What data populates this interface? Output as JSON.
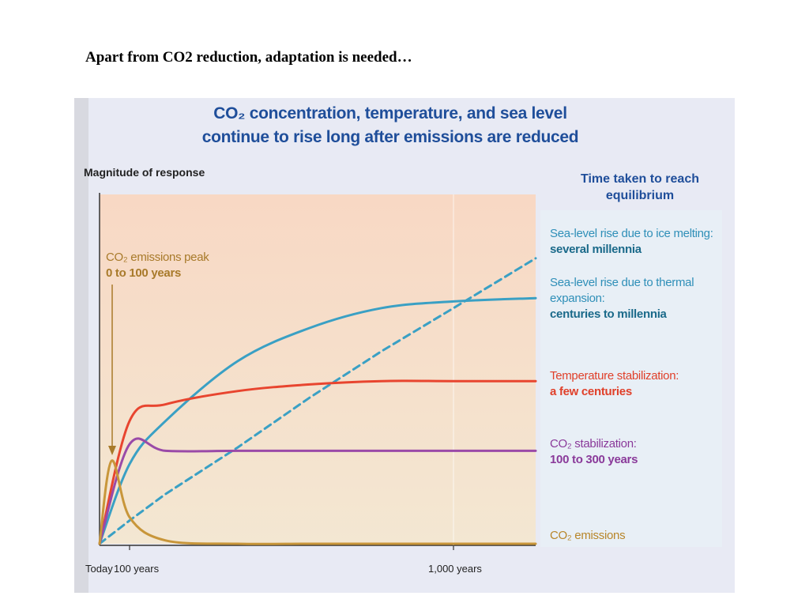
{
  "heading": "Apart from CO2 reduction, adaptation is needed…",
  "figure": {
    "title_line1": "CO₂ concentration, temperature, and sea level",
    "title_line2": "continue to rise long after emissions are reduced",
    "legend_title": "Time taken to reach equilibrium",
    "annotation": {
      "line1": "CO₂ emissions peak",
      "line2": "0 to 100 years"
    }
  },
  "colors": {
    "sea_level": "#3aa0c4",
    "temperature": "#e8452f",
    "co2_stabilization": "#9a4aa8",
    "co2_emissions": "#c8963a",
    "plot_bg": "#f6dcc4",
    "title": "#1f4e9a"
  },
  "chart_data": {
    "type": "line",
    "title": "CO₂ concentration, temperature, and sea level continue to rise long after emissions are reduced",
    "ylabel": "Magnitude of response",
    "xlabel": "",
    "x_ticks": [
      "Today",
      "100 years",
      "1,000 years"
    ],
    "x_scale": "nonlinear",
    "grid": false,
    "legend_placement": "right",
    "series": [
      {
        "name": "Sea-level rise due to ice melting:",
        "time": "several millennia",
        "style": "dashed",
        "color": "#3aa0c4",
        "x": [
          0,
          100,
          200,
          400,
          600,
          800,
          1000,
          1200
        ],
        "y": [
          0.0,
          0.07,
          0.15,
          0.29,
          0.44,
          0.58,
          0.71,
          0.86
        ]
      },
      {
        "name": "Sea-level rise due to thermal expansion:",
        "time": "centuries to millennia",
        "style": "solid",
        "color": "#3aa0c4",
        "x": [
          0,
          100,
          200,
          400,
          600,
          800,
          1000,
          1200
        ],
        "y": [
          0.0,
          0.24,
          0.37,
          0.55,
          0.65,
          0.71,
          0.73,
          0.74
        ]
      },
      {
        "name": "Temperature stabilization:",
        "time": "a few centuries",
        "style": "solid",
        "color": "#e8452f",
        "x": [
          0,
          100,
          200,
          400,
          600,
          800,
          1000,
          1200
        ],
        "y": [
          0.0,
          0.37,
          0.42,
          0.46,
          0.48,
          0.49,
          0.49,
          0.49
        ]
      },
      {
        "name": "CO₂ stabilization:",
        "time": "100 to 300 years",
        "style": "solid",
        "color": "#9a4aa8",
        "x": [
          0,
          100,
          200,
          400,
          600,
          800,
          1000,
          1200
        ],
        "y": [
          0.0,
          0.3,
          0.28,
          0.28,
          0.28,
          0.28,
          0.28,
          0.28
        ]
      },
      {
        "name": "CO₂ emissions",
        "time": "",
        "style": "solid",
        "color": "#c8963a",
        "x": [
          0,
          40,
          100,
          200,
          400,
          600,
          800,
          1000,
          1200
        ],
        "y": [
          0.0,
          0.25,
          0.08,
          0.01,
          0.0,
          0.0,
          0.0,
          0.0,
          0.0
        ]
      }
    ]
  }
}
